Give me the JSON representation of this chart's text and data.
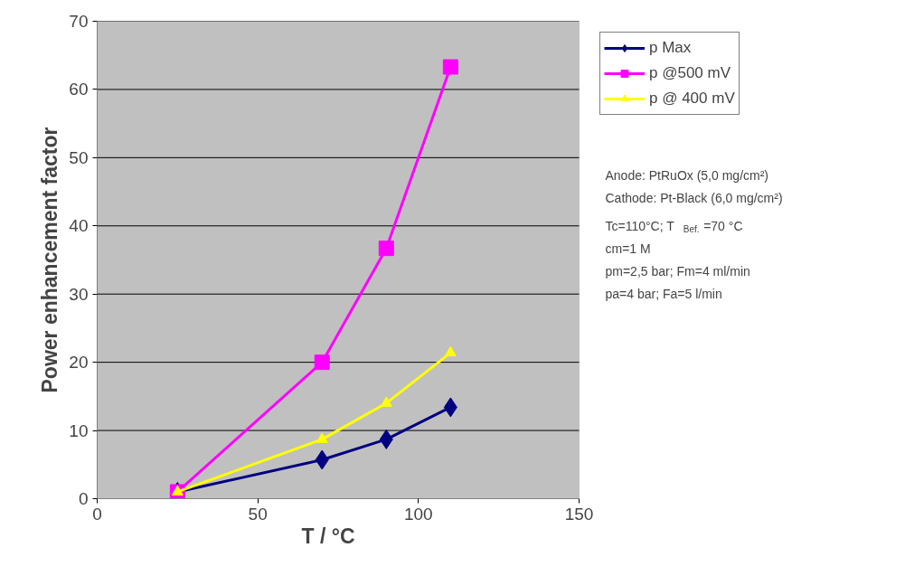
{
  "chart_data": {
    "type": "line",
    "xlabel": "T / °C",
    "ylabel": "Power enhancement factor",
    "xlim": [
      0,
      150
    ],
    "xticks": [
      0,
      50,
      100,
      150
    ],
    "ylim": [
      0,
      70
    ],
    "yticks": [
      0,
      10,
      20,
      30,
      40,
      50,
      60,
      70
    ],
    "grid": "y",
    "legend": "right",
    "series": [
      {
        "name": "p Max",
        "color": "#000080",
        "marker": "diamond",
        "x": [
          25,
          70,
          90,
          110
        ],
        "values": [
          1,
          5.7,
          8.7,
          13.4
        ]
      },
      {
        "name": "p @500 mV",
        "color": "#ff00ff",
        "marker": "square",
        "x": [
          25,
          70,
          90,
          110
        ],
        "values": [
          1,
          20,
          36.7,
          63.3
        ]
      },
      {
        "name": "p @ 400 mV",
        "color": "#ffff00",
        "marker": "triangle",
        "x": [
          25,
          70,
          90,
          110
        ],
        "values": [
          1,
          8.7,
          14,
          21.4
        ]
      }
    ],
    "annotations": [
      "Anode: PtRuOx (5,0 mg/cm²)",
      "Cathode: Pt-Black (6,0 mg/cm²)",
      "Tc=110°C; T$_{Bef.}$=70 °C",
      "cm=1 M",
      "pm=2,5 bar; Fm=4 ml/min",
      "pa=4 bar; Fa=5 l/min"
    ]
  }
}
